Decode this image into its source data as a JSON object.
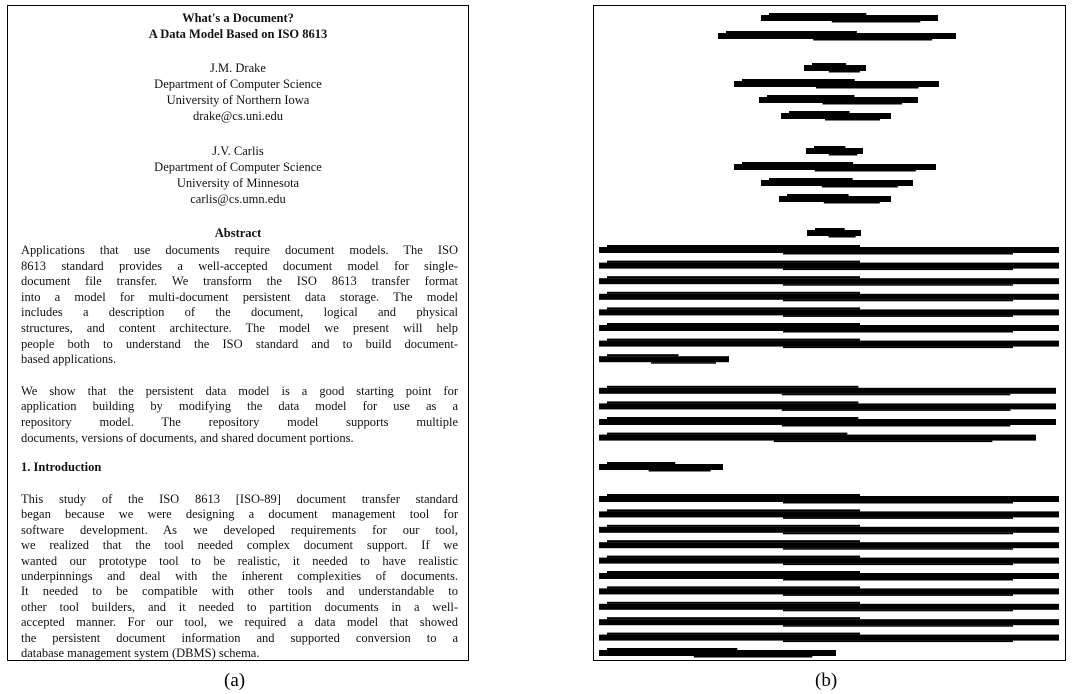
{
  "panel_a": {
    "title_lines": [
      "What's a Document?",
      "A Data Model Based on ISO 8613"
    ],
    "authors": [
      {
        "name": "J.M. Drake",
        "department": "Department of Computer Science",
        "university": "University of Northern Iowa",
        "email": "drake@cs.uni.edu"
      },
      {
        "name": "J.V. Carlis",
        "department": "Department of Computer Science",
        "university": "University of Minnesota",
        "email": "carlis@cs.umn.edu"
      }
    ],
    "abstract_heading": "Abstract",
    "abstract_paragraphs": [
      [
        "Applications that use documents require document models. The ISO",
        "8613 standard provides a well-accepted document model for single-",
        "document file transfer. We transform the ISO 8613 transfer format",
        "into a model for multi-document persistent data storage. The model",
        "includes a description of the document, logical and physical",
        "structures, and content architecture. The model we present will help",
        "people both to understand the ISO standard and to build document-",
        "based applications."
      ],
      [
        "We show that the persistent data model is a good starting point for",
        "application building by modifying the data model for use as a",
        "repository model. The repository model supports multiple",
        "documents, versions of documents, and shared document portions."
      ]
    ],
    "section_heading": "1. Introduction",
    "section_paragraphs": [
      [
        "This study of the ISO 8613 [ISO-89] document transfer standard",
        "began because we were designing a document management tool for",
        "software development. As we developed requirements for our tool,",
        "we realized that the tool needed complex document support. If we",
        "wanted our prototype tool to be realistic, it needed to have realistic",
        "underpinnings and deal with the inherent complexities of documents.",
        "It needed to be compatible with other tools and understandable to",
        "other tool builders, and it needed to partition documents in a well-",
        "accepted manner. For our tool, we required a data model that showed",
        "the persistent document information and supported conversion to a",
        "database management system (DBMS) schema."
      ]
    ],
    "caption": "(a)"
  },
  "panel_b": {
    "caption": "(b)"
  }
}
